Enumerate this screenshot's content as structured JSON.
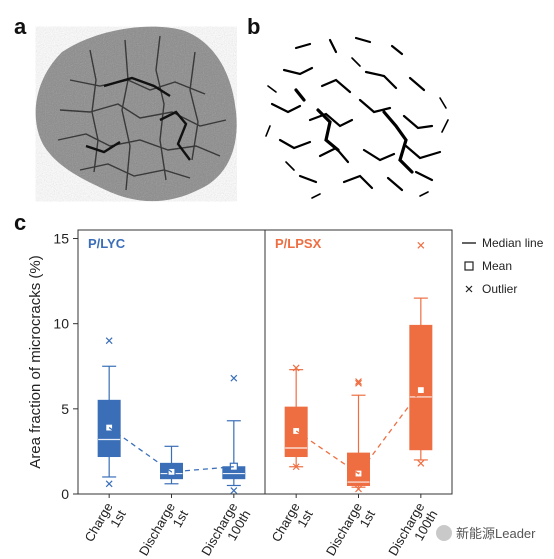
{
  "panels": {
    "a": "a",
    "b": "b",
    "c": "c"
  },
  "images": {
    "a": {
      "icon": "grayscale-crack-micrograph"
    },
    "b": {
      "icon": "binary-crack-map"
    }
  },
  "chart_data": {
    "type": "box",
    "ylabel": "Area fraction of microcracks (%)",
    "xlabel": "",
    "ylim": [
      0,
      15.5
    ],
    "yticks": [
      0,
      5,
      10,
      15
    ],
    "grid": false,
    "legend_position": "right",
    "legend": {
      "median": "Median line",
      "mean": "Mean",
      "outlier": "Outlier"
    },
    "categories": [
      {
        "line1": "Charge",
        "line2": "1st"
      },
      {
        "line1": "Discharge",
        "line2": "1st"
      },
      {
        "line1": "Discharge",
        "line2": "100th"
      }
    ],
    "series": [
      {
        "name": "P/LYC",
        "color": "#3a6fb8",
        "boxes": [
          {
            "min": 1.0,
            "q1": 2.2,
            "median": 3.2,
            "q3": 5.5,
            "max": 7.5,
            "mean": 3.9,
            "outliers": [
              9.0,
              0.6
            ]
          },
          {
            "min": 0.6,
            "q1": 0.9,
            "median": 1.2,
            "q3": 1.8,
            "max": 2.8,
            "mean": 1.3,
            "outliers": []
          },
          {
            "min": 0.5,
            "q1": 0.9,
            "median": 1.2,
            "q3": 1.6,
            "max": 4.3,
            "mean": 1.6,
            "outliers": [
              6.8,
              0.2
            ]
          }
        ]
      },
      {
        "name": "P/LPSX",
        "color": "#ee6e42",
        "boxes": [
          {
            "min": 1.6,
            "q1": 2.2,
            "median": 2.7,
            "q3": 5.1,
            "max": 7.3,
            "mean": 3.7,
            "outliers": [
              7.4,
              1.6
            ]
          },
          {
            "min": 0.4,
            "q1": 0.5,
            "median": 0.7,
            "q3": 2.4,
            "max": 5.8,
            "mean": 1.2,
            "outliers": [
              6.5,
              6.6,
              0.3
            ]
          },
          {
            "min": 2.0,
            "q1": 2.6,
            "median": 5.7,
            "q3": 9.9,
            "max": 11.5,
            "mean": 6.1,
            "outliers": [
              14.6,
              1.8
            ]
          }
        ]
      }
    ]
  },
  "watermark": {
    "text": "新能源Leader",
    "icon": "wechat-logo-icon"
  }
}
